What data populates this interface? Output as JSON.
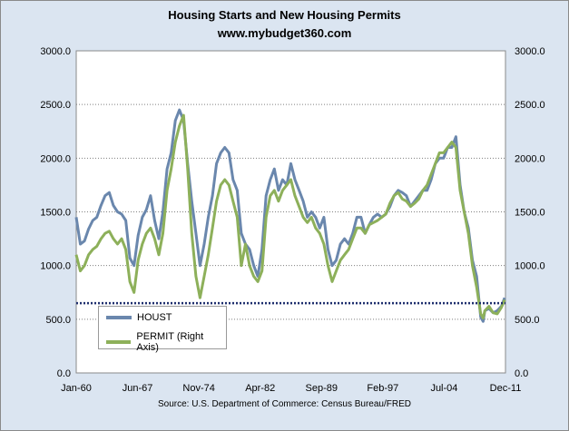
{
  "chart_data": {
    "type": "line",
    "title": "Housing Starts and New Housing Permits",
    "subtitle": "www.mybudget360.com",
    "source": "Source: U.S. Department of Commerce: Census Bureau/FRED",
    "x_tick_labels": [
      "Jan-60",
      "Jun-67",
      "Nov-74",
      "Apr-82",
      "Sep-89",
      "Feb-97",
      "Jul-04",
      "Dec-11"
    ],
    "x_range": [
      1960.0,
      2012.0
    ],
    "y_left_ticks": [
      "0.0",
      "500.0",
      "1000.0",
      "1500.0",
      "2000.0",
      "2500.0",
      "3000.0"
    ],
    "y_right_ticks": [
      "0.0",
      "500.0",
      "1000.0",
      "1500.0",
      "2000.0",
      "2500.0",
      "3000.0"
    ],
    "ylim": [
      0,
      3000
    ],
    "grid": true,
    "reference_line": {
      "y": 650,
      "style": "dotted",
      "color": "#1f2f6e"
    },
    "legend_position": "bottom-left",
    "series": [
      {
        "name": "HOUST",
        "axis": "left",
        "color": "#6a87ad",
        "points": [
          [
            1960.0,
            1450
          ],
          [
            1960.5,
            1200
          ],
          [
            1961.0,
            1230
          ],
          [
            1961.5,
            1340
          ],
          [
            1962.0,
            1420
          ],
          [
            1962.5,
            1450
          ],
          [
            1963.0,
            1560
          ],
          [
            1963.5,
            1650
          ],
          [
            1964.0,
            1680
          ],
          [
            1964.5,
            1560
          ],
          [
            1965.0,
            1500
          ],
          [
            1965.5,
            1480
          ],
          [
            1966.0,
            1420
          ],
          [
            1966.5,
            1070
          ],
          [
            1967.0,
            1000
          ],
          [
            1967.5,
            1280
          ],
          [
            1968.0,
            1450
          ],
          [
            1968.5,
            1520
          ],
          [
            1969.0,
            1650
          ],
          [
            1969.5,
            1420
          ],
          [
            1970.0,
            1250
          ],
          [
            1970.5,
            1500
          ],
          [
            1971.0,
            1900
          ],
          [
            1971.5,
            2050
          ],
          [
            1972.0,
            2350
          ],
          [
            1972.5,
            2450
          ],
          [
            1973.0,
            2350
          ],
          [
            1973.5,
            1950
          ],
          [
            1974.0,
            1600
          ],
          [
            1974.5,
            1300
          ],
          [
            1975.0,
            1000
          ],
          [
            1975.5,
            1200
          ],
          [
            1976.0,
            1450
          ],
          [
            1976.5,
            1650
          ],
          [
            1977.0,
            1950
          ],
          [
            1977.5,
            2050
          ],
          [
            1978.0,
            2100
          ],
          [
            1978.5,
            2050
          ],
          [
            1979.0,
            1800
          ],
          [
            1979.5,
            1700
          ],
          [
            1980.0,
            1300
          ],
          [
            1980.5,
            1200
          ],
          [
            1981.0,
            1150
          ],
          [
            1981.5,
            1000
          ],
          [
            1982.0,
            900
          ],
          [
            1982.5,
            1150
          ],
          [
            1983.0,
            1650
          ],
          [
            1983.5,
            1800
          ],
          [
            1984.0,
            1900
          ],
          [
            1984.5,
            1700
          ],
          [
            1985.0,
            1800
          ],
          [
            1985.5,
            1750
          ],
          [
            1986.0,
            1950
          ],
          [
            1986.5,
            1800
          ],
          [
            1987.0,
            1700
          ],
          [
            1987.5,
            1600
          ],
          [
            1988.0,
            1450
          ],
          [
            1988.5,
            1500
          ],
          [
            1989.0,
            1450
          ],
          [
            1989.5,
            1350
          ],
          [
            1990.0,
            1450
          ],
          [
            1990.5,
            1150
          ],
          [
            1991.0,
            1000
          ],
          [
            1991.5,
            1050
          ],
          [
            1992.0,
            1200
          ],
          [
            1992.5,
            1250
          ],
          [
            1993.0,
            1200
          ],
          [
            1993.5,
            1300
          ],
          [
            1994.0,
            1450
          ],
          [
            1994.5,
            1450
          ],
          [
            1995.0,
            1300
          ],
          [
            1995.5,
            1380
          ],
          [
            1996.0,
            1450
          ],
          [
            1996.5,
            1480
          ],
          [
            1997.0,
            1450
          ],
          [
            1997.5,
            1480
          ],
          [
            1998.0,
            1550
          ],
          [
            1998.5,
            1650
          ],
          [
            1999.0,
            1700
          ],
          [
            1999.5,
            1680
          ],
          [
            2000.0,
            1650
          ],
          [
            2000.5,
            1550
          ],
          [
            2001.0,
            1600
          ],
          [
            2001.5,
            1650
          ],
          [
            2002.0,
            1700
          ],
          [
            2002.5,
            1700
          ],
          [
            2003.0,
            1800
          ],
          [
            2003.5,
            1950
          ],
          [
            2004.0,
            2000
          ],
          [
            2004.5,
            2000
          ],
          [
            2005.0,
            2100
          ],
          [
            2005.5,
            2100
          ],
          [
            2006.0,
            2200
          ],
          [
            2006.5,
            1750
          ],
          [
            2007.0,
            1500
          ],
          [
            2007.5,
            1350
          ],
          [
            2008.0,
            1050
          ],
          [
            2008.5,
            900
          ],
          [
            2009.0,
            520
          ],
          [
            2009.3,
            480
          ],
          [
            2009.5,
            580
          ],
          [
            2010.0,
            600
          ],
          [
            2010.5,
            560
          ],
          [
            2011.0,
            580
          ],
          [
            2011.5,
            620
          ],
          [
            2011.9,
            700
          ]
        ]
      },
      {
        "name": "PERMIT (Right Axis)",
        "axis": "right",
        "color": "#8db05a",
        "points": [
          [
            1960.0,
            1100
          ],
          [
            1960.5,
            950
          ],
          [
            1961.0,
            1000
          ],
          [
            1961.5,
            1100
          ],
          [
            1962.0,
            1150
          ],
          [
            1962.5,
            1180
          ],
          [
            1963.0,
            1250
          ],
          [
            1963.5,
            1300
          ],
          [
            1964.0,
            1320
          ],
          [
            1964.5,
            1250
          ],
          [
            1965.0,
            1200
          ],
          [
            1965.5,
            1250
          ],
          [
            1966.0,
            1150
          ],
          [
            1966.5,
            850
          ],
          [
            1967.0,
            750
          ],
          [
            1967.5,
            1050
          ],
          [
            1968.0,
            1200
          ],
          [
            1968.5,
            1300
          ],
          [
            1969.0,
            1350
          ],
          [
            1969.5,
            1250
          ],
          [
            1970.0,
            1100
          ],
          [
            1970.5,
            1300
          ],
          [
            1971.0,
            1700
          ],
          [
            1971.5,
            1900
          ],
          [
            1972.0,
            2150
          ],
          [
            1972.5,
            2300
          ],
          [
            1973.0,
            2400
          ],
          [
            1973.5,
            1900
          ],
          [
            1974.0,
            1300
          ],
          [
            1974.5,
            900
          ],
          [
            1975.0,
            700
          ],
          [
            1975.5,
            900
          ],
          [
            1976.0,
            1100
          ],
          [
            1976.5,
            1350
          ],
          [
            1977.0,
            1600
          ],
          [
            1977.5,
            1750
          ],
          [
            1978.0,
            1800
          ],
          [
            1978.5,
            1750
          ],
          [
            1979.0,
            1600
          ],
          [
            1979.5,
            1450
          ],
          [
            1980.0,
            1000
          ],
          [
            1980.5,
            1200
          ],
          [
            1981.0,
            1000
          ],
          [
            1981.5,
            900
          ],
          [
            1982.0,
            850
          ],
          [
            1982.5,
            950
          ],
          [
            1983.0,
            1450
          ],
          [
            1983.5,
            1650
          ],
          [
            1984.0,
            1700
          ],
          [
            1984.5,
            1600
          ],
          [
            1985.0,
            1700
          ],
          [
            1985.5,
            1750
          ],
          [
            1986.0,
            1800
          ],
          [
            1986.5,
            1650
          ],
          [
            1987.0,
            1550
          ],
          [
            1987.5,
            1450
          ],
          [
            1988.0,
            1400
          ],
          [
            1988.5,
            1450
          ],
          [
            1989.0,
            1350
          ],
          [
            1989.5,
            1300
          ],
          [
            1990.0,
            1200
          ],
          [
            1990.5,
            1000
          ],
          [
            1991.0,
            850
          ],
          [
            1991.5,
            950
          ],
          [
            1992.0,
            1050
          ],
          [
            1992.5,
            1100
          ],
          [
            1993.0,
            1150
          ],
          [
            1993.5,
            1250
          ],
          [
            1994.0,
            1350
          ],
          [
            1994.5,
            1350
          ],
          [
            1995.0,
            1300
          ],
          [
            1995.5,
            1380
          ],
          [
            1996.0,
            1400
          ],
          [
            1996.5,
            1420
          ],
          [
            1997.0,
            1450
          ],
          [
            1997.5,
            1480
          ],
          [
            1998.0,
            1580
          ],
          [
            1998.5,
            1650
          ],
          [
            1999.0,
            1680
          ],
          [
            1999.5,
            1620
          ],
          [
            2000.0,
            1600
          ],
          [
            2000.5,
            1550
          ],
          [
            2001.0,
            1580
          ],
          [
            2001.5,
            1620
          ],
          [
            2002.0,
            1700
          ],
          [
            2002.5,
            1750
          ],
          [
            2003.0,
            1850
          ],
          [
            2003.5,
            1950
          ],
          [
            2004.0,
            2050
          ],
          [
            2004.5,
            2050
          ],
          [
            2005.0,
            2100
          ],
          [
            2005.5,
            2150
          ],
          [
            2006.0,
            2100
          ],
          [
            2006.5,
            1700
          ],
          [
            2007.0,
            1500
          ],
          [
            2007.5,
            1300
          ],
          [
            2008.0,
            1000
          ],
          [
            2008.5,
            800
          ],
          [
            2009.0,
            550
          ],
          [
            2009.3,
            510
          ],
          [
            2009.5,
            580
          ],
          [
            2010.0,
            620
          ],
          [
            2010.5,
            560
          ],
          [
            2011.0,
            550
          ],
          [
            2011.5,
            610
          ],
          [
            2011.9,
            680
          ]
        ]
      }
    ]
  }
}
